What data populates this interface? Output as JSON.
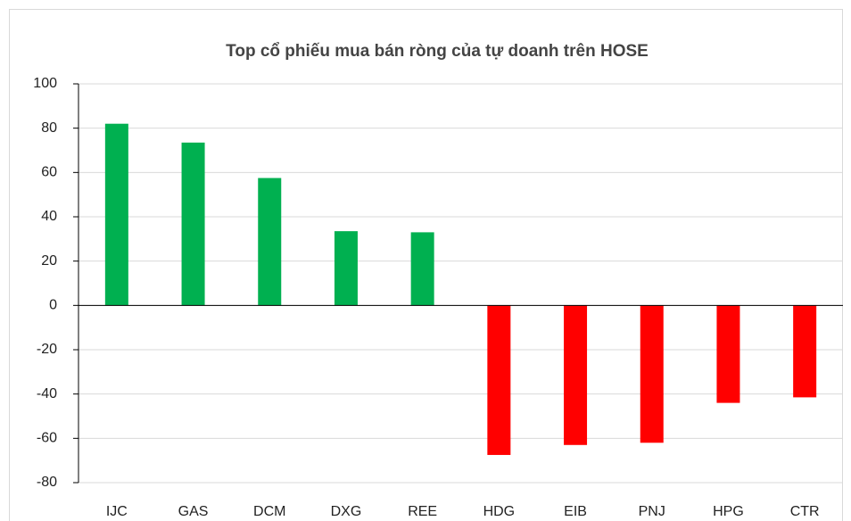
{
  "chart_data": {
    "type": "bar",
    "title": "Top cổ phiếu mua bán ròng của tự doanh trên HOSE",
    "categories": [
      "IJC",
      "GAS",
      "DCM",
      "DXG",
      "REE",
      "HDG",
      "EIB",
      "PNJ",
      "HPG",
      "CTR"
    ],
    "values": [
      82,
      73.5,
      57.5,
      33.5,
      33,
      -67.5,
      -63,
      -62,
      -44,
      -41.5
    ],
    "colors": [
      "#00b050",
      "#00b050",
      "#00b050",
      "#00b050",
      "#00b050",
      "#ff0000",
      "#ff0000",
      "#ff0000",
      "#ff0000",
      "#ff0000"
    ],
    "ylim": [
      -80,
      100
    ],
    "yticks": [
      -80,
      -60,
      -40,
      -20,
      0,
      20,
      40,
      60,
      80,
      100
    ],
    "grid": true
  }
}
